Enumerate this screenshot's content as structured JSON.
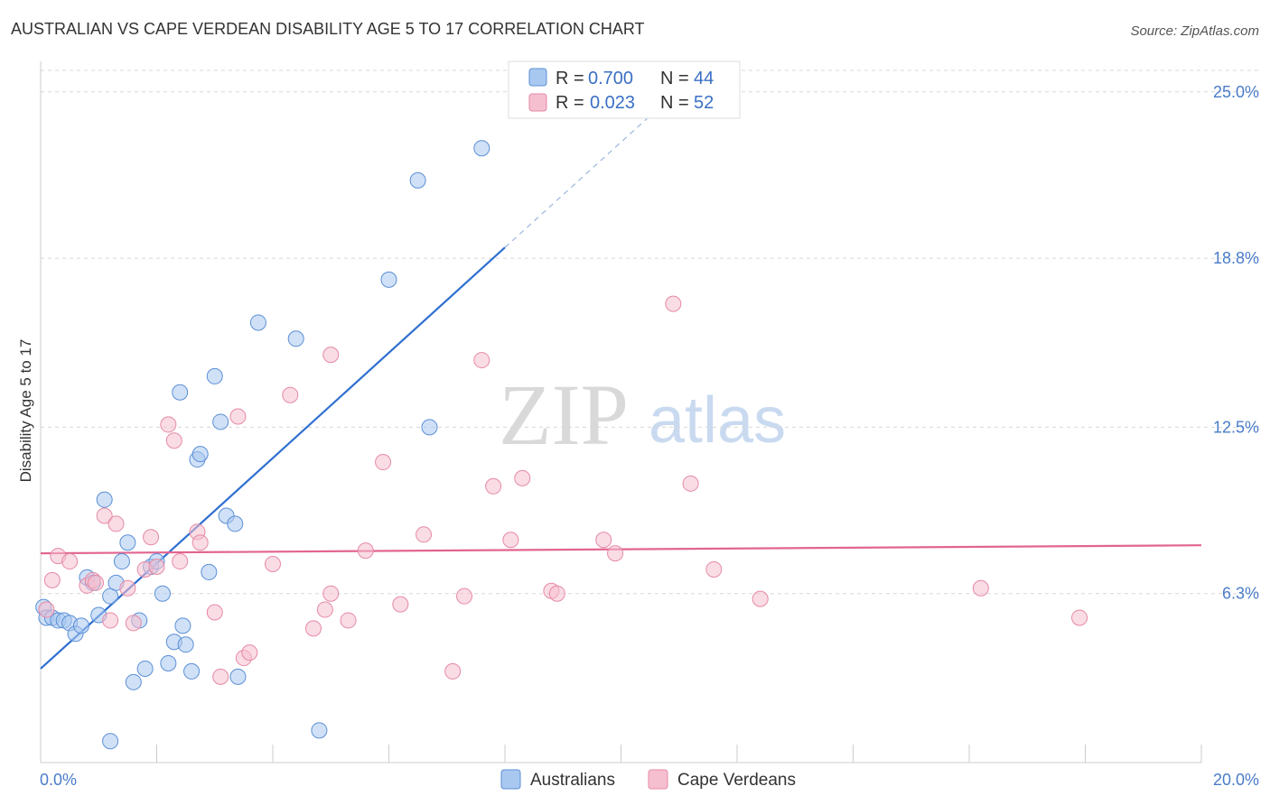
{
  "header": {
    "title": "AUSTRALIAN VS CAPE VERDEAN DISABILITY AGE 5 TO 17 CORRELATION CHART",
    "source": "Source: ZipAtlas.com"
  },
  "watermark": {
    "zip": "ZIP",
    "atlas": "atlas"
  },
  "colors": {
    "blue_fill": "#a9c8f0",
    "blue_stroke": "#5b8fd6",
    "blue_line": "#2f6fd0",
    "pink_fill": "#f6bfd0",
    "pink_stroke": "#e58aa6",
    "pink_line": "#e26590",
    "tick_label": "#4a7cc9",
    "grid": "#d8d8d8"
  },
  "legend": {
    "rows": [
      {
        "r_label": "R = ",
        "r_value": "0.700",
        "n_label": "N = ",
        "n_value": "44"
      },
      {
        "r_label": "R = ",
        "r_value": "0.023",
        "n_label": "N = ",
        "n_value": "52"
      }
    ]
  },
  "bottom_legend": {
    "items": [
      "Australians",
      "Cape Verdeans"
    ]
  },
  "chart_data": {
    "type": "scatter",
    "title": "AUSTRALIAN VS CAPE VERDEAN DISABILITY AGE 5 TO 17 CORRELATION CHART",
    "xlabel": "",
    "ylabel": "Disability Age 5 to 17",
    "xlim": [
      0,
      20
    ],
    "ylim": [
      0,
      25.8
    ],
    "x_tick_labels": [
      "0.0%",
      "20.0%"
    ],
    "y_ticks": [
      6.3,
      12.5,
      18.8,
      25.0
    ],
    "y_tick_labels": [
      "6.3%",
      "12.5%",
      "18.8%",
      "25.0%"
    ],
    "grid": true,
    "legend_position": "top-center",
    "series": [
      {
        "name": "Australians",
        "r": 0.7,
        "n": 44,
        "trend": {
          "x0": 0,
          "y0": 3.5,
          "x1": 8.0,
          "y1": 19.2,
          "dashed_to_x": 10.5
        },
        "points": [
          [
            0.05,
            5.8
          ],
          [
            0.1,
            5.4
          ],
          [
            0.2,
            5.4
          ],
          [
            0.3,
            5.3
          ],
          [
            0.4,
            5.3
          ],
          [
            0.5,
            5.2
          ],
          [
            0.6,
            4.8
          ],
          [
            0.7,
            5.1
          ],
          [
            0.8,
            6.9
          ],
          [
            0.9,
            6.7
          ],
          [
            1.0,
            5.5
          ],
          [
            1.1,
            9.8
          ],
          [
            1.2,
            6.2
          ],
          [
            1.3,
            6.7
          ],
          [
            1.4,
            7.5
          ],
          [
            1.5,
            8.2
          ],
          [
            1.6,
            3.0
          ],
          [
            1.7,
            5.3
          ],
          [
            1.8,
            3.5
          ],
          [
            1.9,
            7.3
          ],
          [
            2.0,
            7.5
          ],
          [
            2.1,
            6.3
          ],
          [
            2.2,
            3.7
          ],
          [
            2.3,
            4.5
          ],
          [
            2.4,
            13.8
          ],
          [
            2.45,
            5.1
          ],
          [
            2.5,
            4.4
          ],
          [
            2.6,
            3.4
          ],
          [
            2.7,
            11.3
          ],
          [
            2.75,
            11.5
          ],
          [
            2.9,
            7.1
          ],
          [
            3.0,
            14.4
          ],
          [
            3.1,
            12.7
          ],
          [
            3.2,
            9.2
          ],
          [
            3.35,
            8.9
          ],
          [
            3.4,
            3.2
          ],
          [
            3.75,
            16.4
          ],
          [
            4.4,
            15.8
          ],
          [
            4.8,
            1.2
          ],
          [
            6.0,
            18.0
          ],
          [
            6.5,
            21.7
          ],
          [
            6.7,
            12.5
          ],
          [
            7.6,
            22.9
          ],
          [
            1.2,
            0.8
          ]
        ]
      },
      {
        "name": "Cape Verdeans",
        "r": 0.023,
        "n": 52,
        "trend": {
          "x0": 0,
          "y0": 7.8,
          "x1": 20.0,
          "y1": 8.1
        },
        "points": [
          [
            0.1,
            5.7
          ],
          [
            0.2,
            6.8
          ],
          [
            0.3,
            7.7
          ],
          [
            0.5,
            7.5
          ],
          [
            0.8,
            6.6
          ],
          [
            0.9,
            6.8
          ],
          [
            0.95,
            6.7
          ],
          [
            1.1,
            9.2
          ],
          [
            1.2,
            5.3
          ],
          [
            1.3,
            8.9
          ],
          [
            1.5,
            6.5
          ],
          [
            1.6,
            5.2
          ],
          [
            1.8,
            7.2
          ],
          [
            1.9,
            8.4
          ],
          [
            2.0,
            7.3
          ],
          [
            2.2,
            12.6
          ],
          [
            2.3,
            12.0
          ],
          [
            2.4,
            7.5
          ],
          [
            2.7,
            8.6
          ],
          [
            2.75,
            8.2
          ],
          [
            3.0,
            5.6
          ],
          [
            3.1,
            3.2
          ],
          [
            3.4,
            12.9
          ],
          [
            3.5,
            3.9
          ],
          [
            3.6,
            4.1
          ],
          [
            4.0,
            7.4
          ],
          [
            4.3,
            13.7
          ],
          [
            4.7,
            5.0
          ],
          [
            4.9,
            5.7
          ],
          [
            5.0,
            6.3
          ],
          [
            5.0,
            15.2
          ],
          [
            5.3,
            5.3
          ],
          [
            5.6,
            7.9
          ],
          [
            5.9,
            11.2
          ],
          [
            6.2,
            5.9
          ],
          [
            6.6,
            8.5
          ],
          [
            7.1,
            3.4
          ],
          [
            7.3,
            6.2
          ],
          [
            7.6,
            15.0
          ],
          [
            7.8,
            10.3
          ],
          [
            8.1,
            8.3
          ],
          [
            8.3,
            10.6
          ],
          [
            8.8,
            6.4
          ],
          [
            8.9,
            6.3
          ],
          [
            9.7,
            8.3
          ],
          [
            9.9,
            7.8
          ],
          [
            10.9,
            17.1
          ],
          [
            11.2,
            10.4
          ],
          [
            11.6,
            7.2
          ],
          [
            12.4,
            6.1
          ],
          [
            16.2,
            6.5
          ],
          [
            17.9,
            5.4
          ]
        ]
      }
    ]
  }
}
